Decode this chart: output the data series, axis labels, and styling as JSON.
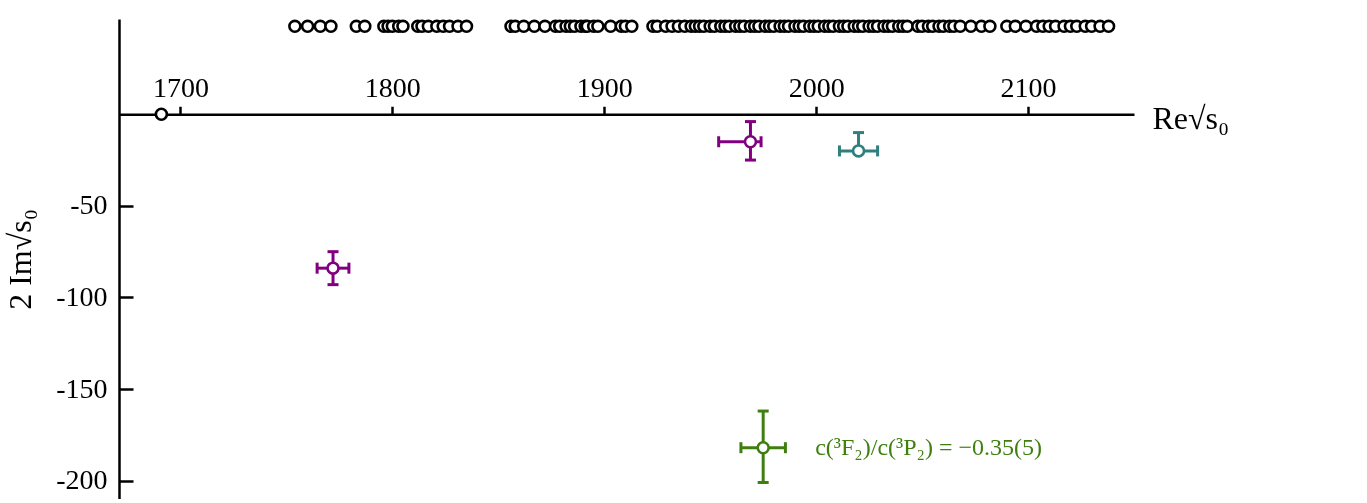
{
  "chart_data": {
    "type": "scatter",
    "marker": "circle",
    "xlabel": "Re√s₀",
    "ylabel": "2 Im√s₀",
    "xlim": [
      1671,
      2150
    ],
    "ylim": [
      -210,
      52
    ],
    "xticks": [
      1700,
      1800,
      1900,
      2000,
      2100
    ],
    "yticks": [
      -50,
      -100,
      -150,
      -200
    ],
    "annotations": [
      {
        "text": "c(³F₂)/c(³P₂) = −0.35(5)",
        "x": 1975,
        "y": -182
      }
    ],
    "series": [
      {
        "color": "#000000",
        "x": [
          1754,
          1760,
          1766,
          1771,
          1783,
          1787,
          1796,
          1798,
          1800,
          1803,
          1805,
          1812,
          1814,
          1817,
          1821,
          1824,
          1827,
          1831,
          1835,
          1856,
          1858,
          1862,
          1867,
          1872,
          1877,
          1879,
          1882,
          1884,
          1886,
          1889,
          1891,
          1892,
          1895,
          1897,
          1903,
          1908,
          1910,
          1913,
          1923,
          1925,
          1929,
          1932,
          1935,
          1938,
          1941,
          1943,
          1945,
          1947,
          1950,
          1952,
          1955,
          1957,
          1959,
          1962,
          1964,
          1966,
          1969,
          1971,
          1973,
          1976,
          1978,
          1980,
          1983,
          1985,
          1987,
          1990,
          1992,
          1994,
          1997,
          1999,
          2001,
          2004,
          2006,
          2008,
          2011,
          2013,
          2015,
          2018,
          2020,
          2022,
          2025,
          2027,
          2029,
          2032,
          2034,
          2036,
          2039,
          2041,
          2043,
          2048,
          2050,
          2053,
          2055,
          2058,
          2060,
          2063,
          2065,
          2068,
          2073,
          2078,
          2082,
          2090,
          2094,
          2099,
          2104,
          2107,
          2110,
          2113,
          2117,
          2120,
          2123,
          2127,
          2130,
          2134,
          2138
        ],
        "values": [
          48,
          48,
          48,
          48,
          48,
          48,
          48,
          48,
          48,
          48,
          48,
          48,
          48,
          48,
          48,
          48,
          48,
          48,
          48,
          48,
          48,
          48,
          48,
          48,
          48,
          48,
          48,
          48,
          48,
          48,
          48,
          48,
          48,
          48,
          48,
          48,
          48,
          48,
          48,
          48,
          48,
          48,
          48,
          48,
          48,
          48,
          48,
          48,
          48,
          48,
          48,
          48,
          48,
          48,
          48,
          48,
          48,
          48,
          48,
          48,
          48,
          48,
          48,
          48,
          48,
          48,
          48,
          48,
          48,
          48,
          48,
          48,
          48,
          48,
          48,
          48,
          48,
          48,
          48,
          48,
          48,
          48,
          48,
          48,
          48,
          48,
          48,
          48,
          48,
          48,
          48,
          48,
          48,
          48,
          48,
          48,
          48,
          48,
          48,
          48,
          48,
          48,
          48,
          48,
          48,
          48,
          48,
          48,
          48,
          48,
          48,
          48,
          48,
          48,
          48
        ]
      },
      {
        "color": "#000000",
        "x": [
          1691
        ],
        "values": [
          0
        ]
      },
      {
        "color": "#800080",
        "x": [
          1772,
          1969
        ],
        "values": [
          -84,
          -15
        ],
        "errors": [
          9,
          [
            -25,
            -4
          ]
        ],
        "xerrors": [
          7.5,
          [
            1954,
            1974
          ]
        ]
      },
      {
        "color": "#2f7f7f",
        "x": [
          2020
        ],
        "values": [
          -20
        ],
        "errors": [
          [
            -20,
            -10
          ]
        ],
        "xerrors": [
          9
        ]
      },
      {
        "color": "#3f7f0f",
        "x": [
          1975
        ],
        "values": [
          -182
        ],
        "errors": [
          [
            -201,
            -162
          ]
        ],
        "xerrors": [
          10.5
        ]
      }
    ]
  }
}
